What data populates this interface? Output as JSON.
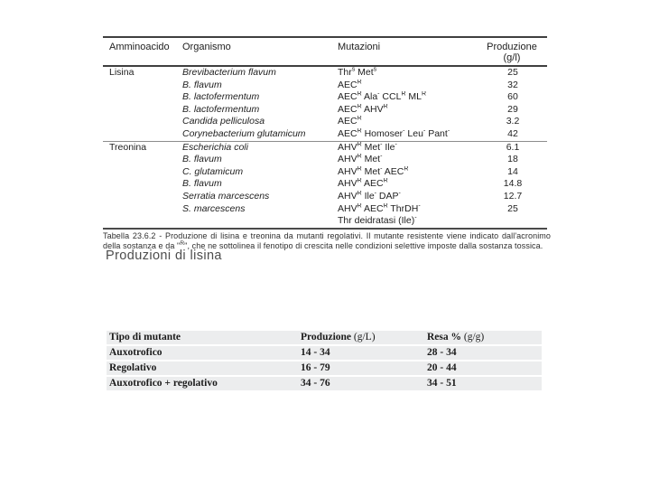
{
  "scan_table": {
    "headers": {
      "amino": "Amminoacido",
      "organism": "Organismo",
      "mutations": "Mutazioni",
      "production": "Produzione",
      "production_unit": "(g/l)"
    },
    "sections": [
      {
        "amino": "Lisina",
        "rows": [
          {
            "organism": "Brevibacterium flavum",
            "mutations": "Thr^s Met^s",
            "production": "25"
          },
          {
            "organism": "B. flavum",
            "mutations": "AEC^R",
            "production": "32"
          },
          {
            "organism": "B. lactofermentum",
            "mutations": "AEC^R Ala^- CCL^R ML^R",
            "production": "60"
          },
          {
            "organism": "B. lactofermentum",
            "mutations": "AEC^R AHV^R",
            "production": "29"
          },
          {
            "organism": "Candida pelliculosa",
            "mutations": "AEC^R",
            "production": "3.2"
          },
          {
            "organism": "Corynebacterium glutamicum",
            "mutations": "AEC^R Homoser^- Leu^- Pant^-",
            "production": "42"
          }
        ]
      },
      {
        "amino": "Treonina",
        "rows": [
          {
            "organism": "Escherichia coli",
            "mutations": "AHV^R Met^- Ile^-",
            "production": "6.1"
          },
          {
            "organism": "B. flavum",
            "mutations": "AHV^R Met^-",
            "production": "18"
          },
          {
            "organism": "C. glutamicum",
            "mutations": "AHV^R Met^- AEC^R",
            "production": "14"
          },
          {
            "organism": "B. flavum",
            "mutations": "AHV^R AEC^R",
            "production": "14.8"
          },
          {
            "organism": "Serratia marcescens",
            "mutations": "AHV^R Ile^- DAP^-",
            "production": "12.7"
          },
          {
            "organism": "S. marcescens",
            "mutations": "AHV^R AEC^R ThrDH^-",
            "production": "25"
          },
          {
            "organism": "",
            "mutations": "Thr deidratasi (Ile)^-",
            "production": ""
          }
        ]
      }
    ],
    "caption": "Tabella 23.6.2 - Produzione di lisina e treonina da mutanti regolativi. Il mutante resistente viene indicato dall'acronimo della sostanza e da \"^R\", che ne sottolinea il fenotipo di crescita nelle condizioni selettive imposte dalla sostanza tossica."
  },
  "subtitle": "Produzioni di lisina",
  "summary_table": {
    "headers": [
      {
        "label": "Tipo di mutante",
        "unit": ""
      },
      {
        "label": "Produzione",
        "unit": " (g/L)"
      },
      {
        "label": "Resa %",
        "unit": " (g/g)"
      }
    ],
    "rows": [
      {
        "type": "Auxotrofico",
        "production": "14 - 34",
        "resa": "28 - 34"
      },
      {
        "type": "Regolativo",
        "production": "16 - 79",
        "resa": "20 - 44"
      },
      {
        "type": "Auxotrofico + regolativo",
        "production": "34 - 76",
        "resa": "34 - 51"
      }
    ],
    "row_bg": "#ecedee",
    "text_color": "#1b1b1b"
  }
}
